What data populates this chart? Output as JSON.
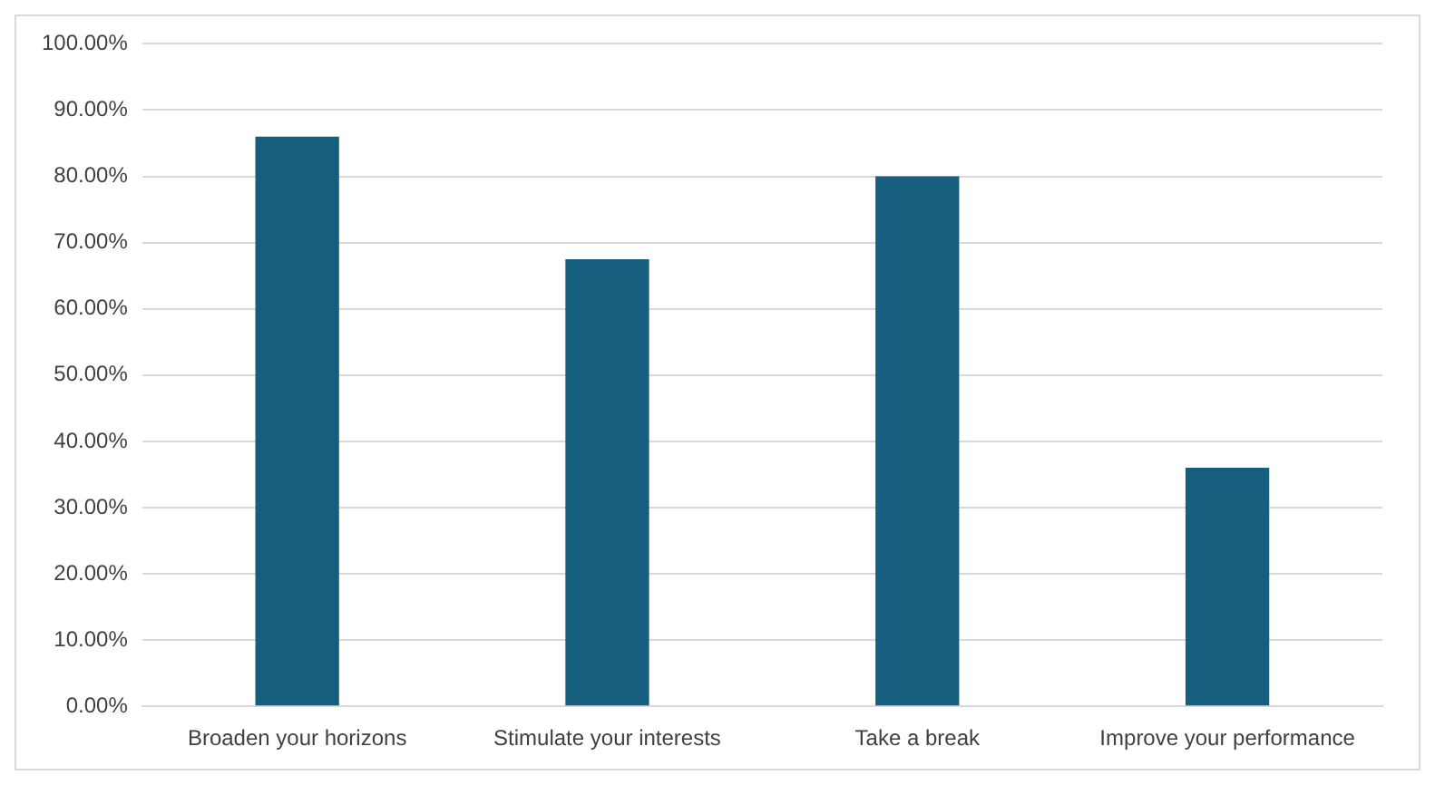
{
  "chart_data": {
    "type": "bar",
    "categories": [
      "Broaden your horizons",
      "Stimulate your interests",
      "Take a break",
      "Improve your performance"
    ],
    "values": [
      86,
      67.5,
      80,
      36
    ],
    "color": "#155e7e",
    "ylim": [
      0,
      100
    ],
    "yticks": [
      {
        "value": 0,
        "label": "0.00%"
      },
      {
        "value": 10,
        "label": "10.00%"
      },
      {
        "value": 20,
        "label": "20.00%"
      },
      {
        "value": 30,
        "label": "30.00%"
      },
      {
        "value": 40,
        "label": "40.00%"
      },
      {
        "value": 50,
        "label": "50.00%"
      },
      {
        "value": 60,
        "label": "60.00%"
      },
      {
        "value": 70,
        "label": "70.00%"
      },
      {
        "value": 80,
        "label": "80.00%"
      },
      {
        "value": 90,
        "label": "90.00%"
      },
      {
        "value": 100,
        "label": "100.00%"
      }
    ],
    "grid": "y"
  }
}
